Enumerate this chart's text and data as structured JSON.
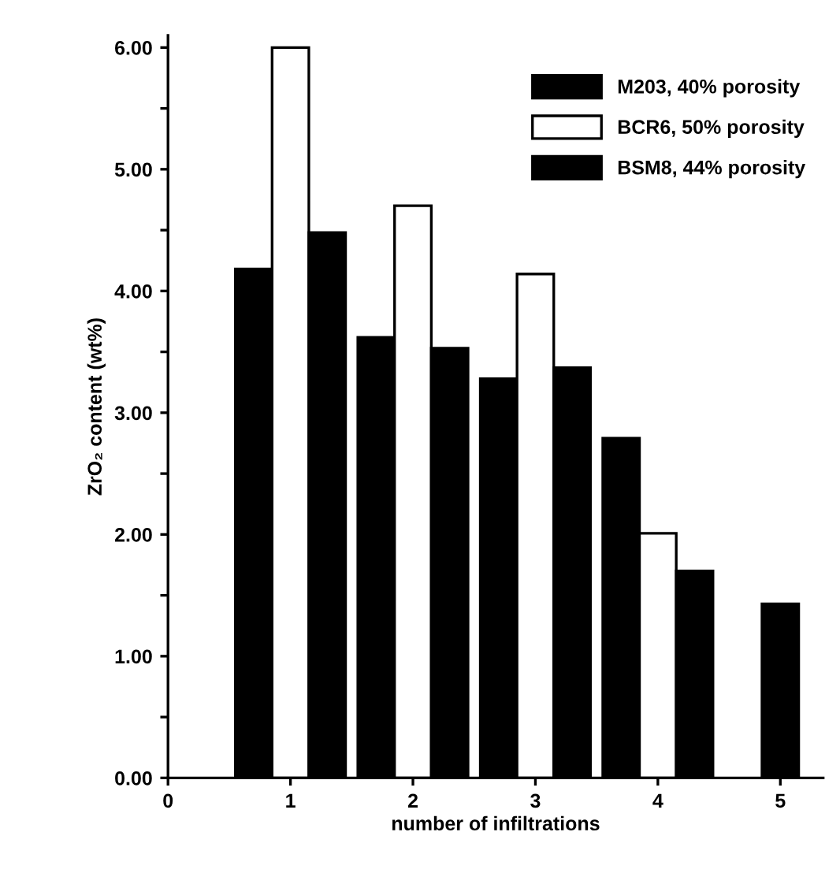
{
  "chart_data": {
    "type": "bar",
    "xlabel": "number of infiltrations",
    "ylabel": "ZrO₂ content (wt%)",
    "series": [
      {
        "name": "M203, 40% porosity",
        "color": "#000000",
        "x": [
          0.7,
          1.7,
          2.7,
          3.7
        ],
        "values": [
          4.18,
          3.62,
          3.28,
          2.79
        ]
      },
      {
        "name": "BCR6, 50% porosity",
        "color": "#ffffff",
        "x": [
          1,
          2,
          3,
          4
        ],
        "values": [
          6.0,
          4.7,
          4.14,
          2.01
        ]
      },
      {
        "name": "BSM8, 44% porosity",
        "color": "#000000",
        "x": [
          1.3,
          2.3,
          3.3,
          4.3,
          5
        ],
        "values": [
          4.48,
          3.53,
          3.37,
          1.7,
          1.43
        ]
      }
    ],
    "xlim": [
      0,
      5.35
    ],
    "xticks": [
      0,
      1,
      2,
      3,
      4,
      5
    ],
    "ylim": [
      0,
      6.1
    ],
    "yticks": [
      {
        "value": 0,
        "label": "0.00"
      },
      {
        "value": 0.5,
        "label": null
      },
      {
        "value": 1,
        "label": "1.00"
      },
      {
        "value": 1.5,
        "label": null
      },
      {
        "value": 2,
        "label": "2.00"
      },
      {
        "value": 2.5,
        "label": null
      },
      {
        "value": 3,
        "label": "3.00"
      },
      {
        "value": 3.5,
        "label": null
      },
      {
        "value": 4,
        "label": "4.00"
      },
      {
        "value": 4.5,
        "label": null
      },
      {
        "value": 5,
        "label": "5.00"
      },
      {
        "value": 5.5,
        "label": null
      },
      {
        "value": 6,
        "label": "6.00"
      }
    ],
    "legend": "top right",
    "grid": false
  }
}
